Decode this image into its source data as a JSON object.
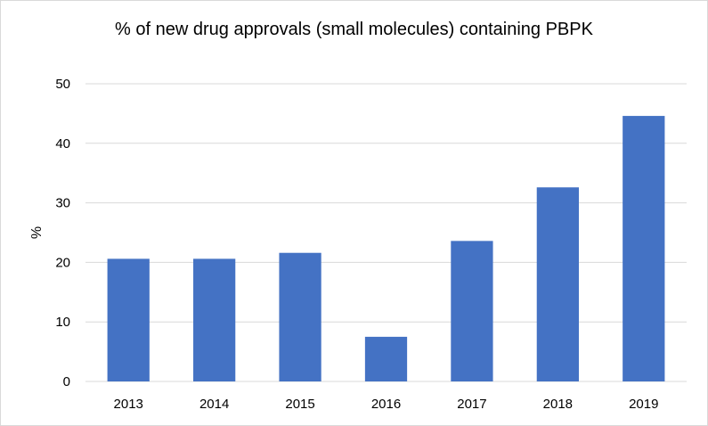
{
  "chart_data": {
    "type": "bar",
    "title": "% of new drug approvals (small molecules) containing PBPK",
    "xlabel": "",
    "ylabel": "%",
    "ylim": [
      0,
      50
    ],
    "yticks": [
      0,
      10,
      20,
      30,
      40,
      50
    ],
    "categories": [
      "2013",
      "2014",
      "2015",
      "2016",
      "2017",
      "2018",
      "2019"
    ],
    "values": [
      20.6,
      20.6,
      21.6,
      7.5,
      23.6,
      32.6,
      44.6
    ],
    "bar_color": "#4472c4",
    "grid": true,
    "legend": "none"
  }
}
